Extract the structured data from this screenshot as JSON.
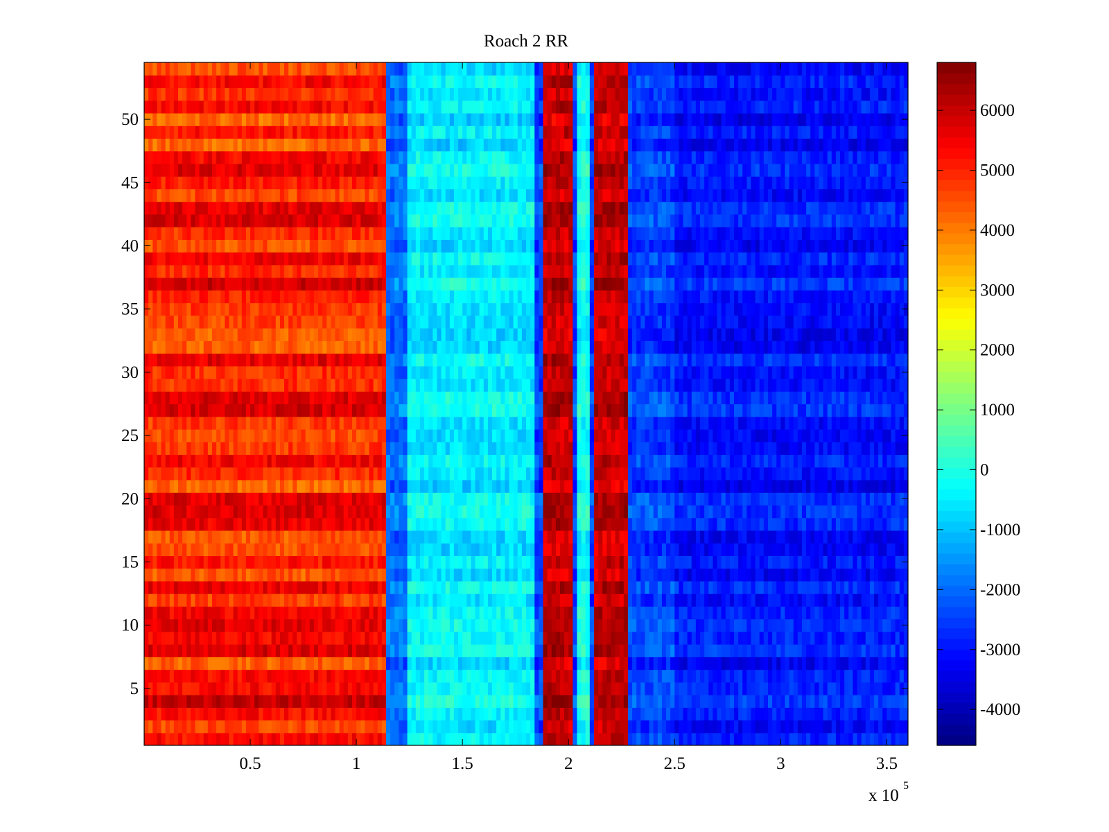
{
  "chart_data": {
    "type": "heatmap",
    "title": "Roach 2 RR",
    "xlabel": "",
    "ylabel": "",
    "x_multiplier_label": "x 10",
    "x_multiplier_exponent": "5",
    "xlim": [
      0,
      3.6
    ],
    "ylim": [
      0.5,
      54.5
    ],
    "x_ticks": [
      0.5,
      1,
      1.5,
      2,
      2.5,
      3,
      3.5
    ],
    "x_tick_labels": [
      "0.5",
      "1",
      "1.5",
      "2",
      "2.5",
      "3",
      "3.5"
    ],
    "y_ticks": [
      5,
      10,
      15,
      20,
      25,
      30,
      35,
      40,
      45,
      50
    ],
    "y_tick_labels": [
      "5",
      "10",
      "15",
      "20",
      "25",
      "30",
      "35",
      "40",
      "45",
      "50"
    ],
    "n_rows": 54,
    "colorbar": {
      "colormap": "jet",
      "clim": [
        -4600,
        6800
      ],
      "ticks": [
        -4000,
        -3000,
        -2000,
        -1000,
        0,
        1000,
        2000,
        3000,
        4000,
        5000,
        6000
      ],
      "tick_labels": [
        "-4000",
        "-3000",
        "-2000",
        "-1000",
        "0",
        "1000",
        "2000",
        "3000",
        "4000",
        "5000",
        "6000"
      ]
    },
    "bands": [
      {
        "x_start": 0.0,
        "x_end": 1.15,
        "approx_value": 5000
      },
      {
        "x_start": 1.15,
        "x_end": 1.25,
        "approx_value": -2000
      },
      {
        "x_start": 1.25,
        "x_end": 1.85,
        "approx_value": -500
      },
      {
        "x_start": 1.88,
        "x_end": 2.02,
        "approx_value": 6000
      },
      {
        "x_start": 2.05,
        "x_end": 2.1,
        "approx_value": -200
      },
      {
        "x_start": 2.12,
        "x_end": 2.28,
        "approx_value": 6000
      },
      {
        "x_start": 2.3,
        "x_end": 2.5,
        "approx_value": -2500
      },
      {
        "x_start": 2.5,
        "x_end": 3.6,
        "approx_value": -3000
      }
    ],
    "grid": false,
    "legend": "none"
  }
}
